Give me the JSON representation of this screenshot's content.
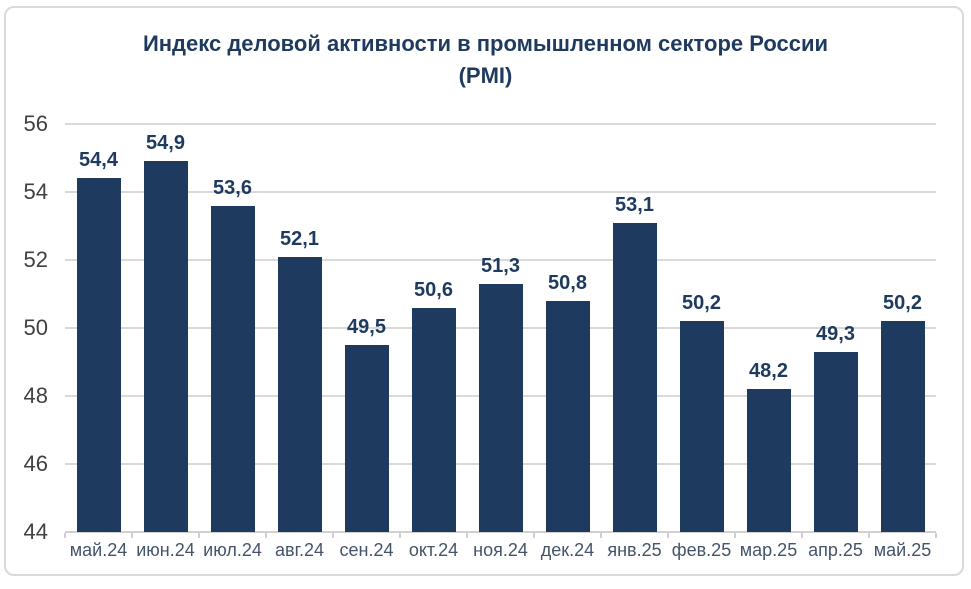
{
  "frame": {
    "background": "#FFFFFF",
    "border_color": "#D9D9D9"
  },
  "title": {
    "line1": "Индекс деловой активности в промышленном секторе России",
    "line2": "(PMI)",
    "color": "#1F3A5F"
  },
  "chart_data": {
    "type": "bar",
    "title": "Индекс деловой активности в промышленном секторе России (PMI)",
    "categories": [
      "май.24",
      "июн.24",
      "июл.24",
      "авг.24",
      "сен.24",
      "окт.24",
      "ноя.24",
      "дек.24",
      "янв.25",
      "фев.25",
      "мар.25",
      "апр.25",
      "май.25"
    ],
    "values": [
      54.4,
      54.9,
      53.6,
      52.1,
      49.5,
      50.6,
      51.3,
      50.8,
      53.1,
      50.2,
      48.2,
      49.3,
      50.2
    ],
    "value_labels": [
      "54,4",
      "54,9",
      "53,6",
      "52,1",
      "49,5",
      "50,6",
      "51,3",
      "50,8",
      "53,1",
      "50,2",
      "48,2",
      "49,3",
      "50,2"
    ],
    "xlabel": "",
    "ylabel": "",
    "ylim": [
      44,
      56
    ],
    "yticks": [
      44,
      46,
      48,
      50,
      52,
      54,
      56
    ],
    "grid": true,
    "legend_position": "none",
    "bar_color": "#1F3A5F",
    "value_label_color": "#1F3A5F",
    "ytick_color": "#404040",
    "xtick_color": "#44546A",
    "gridline_color": "#D9D9D9",
    "axis_color": "#D0D0D0"
  }
}
